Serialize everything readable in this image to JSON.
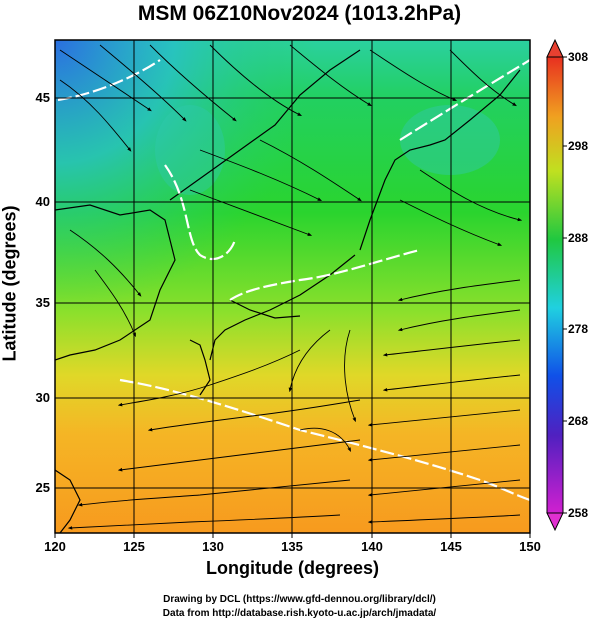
{
  "title": "MSM 06Z10Nov2024 (1013.2hPa)",
  "axes": {
    "xlabel": "Longitude (degrees)",
    "ylabel": "Latitude  (degrees)",
    "xticks": [
      "120",
      "125",
      "130",
      "135",
      "140",
      "145",
      "150"
    ],
    "yticks": [
      "45",
      "40",
      "35",
      "30",
      "25"
    ]
  },
  "colorbar": {
    "labels": [
      "308",
      "298",
      "288",
      "278",
      "268",
      "258"
    ],
    "min": 258,
    "max": 308
  },
  "credits": {
    "line1": "Drawing by DCL (https://www.gfd-dennou.org/library/dcl/)",
    "line2": "Data from http://database.rish.kyoto-u.ac.jp/arch/jmadata/"
  },
  "map_extent": {
    "lon": [
      120,
      150
    ],
    "lat": [
      22.4,
      47.6
    ]
  },
  "colors": {
    "frame": "#000000",
    "contour": "#ffffff",
    "grid": "#000000"
  }
}
